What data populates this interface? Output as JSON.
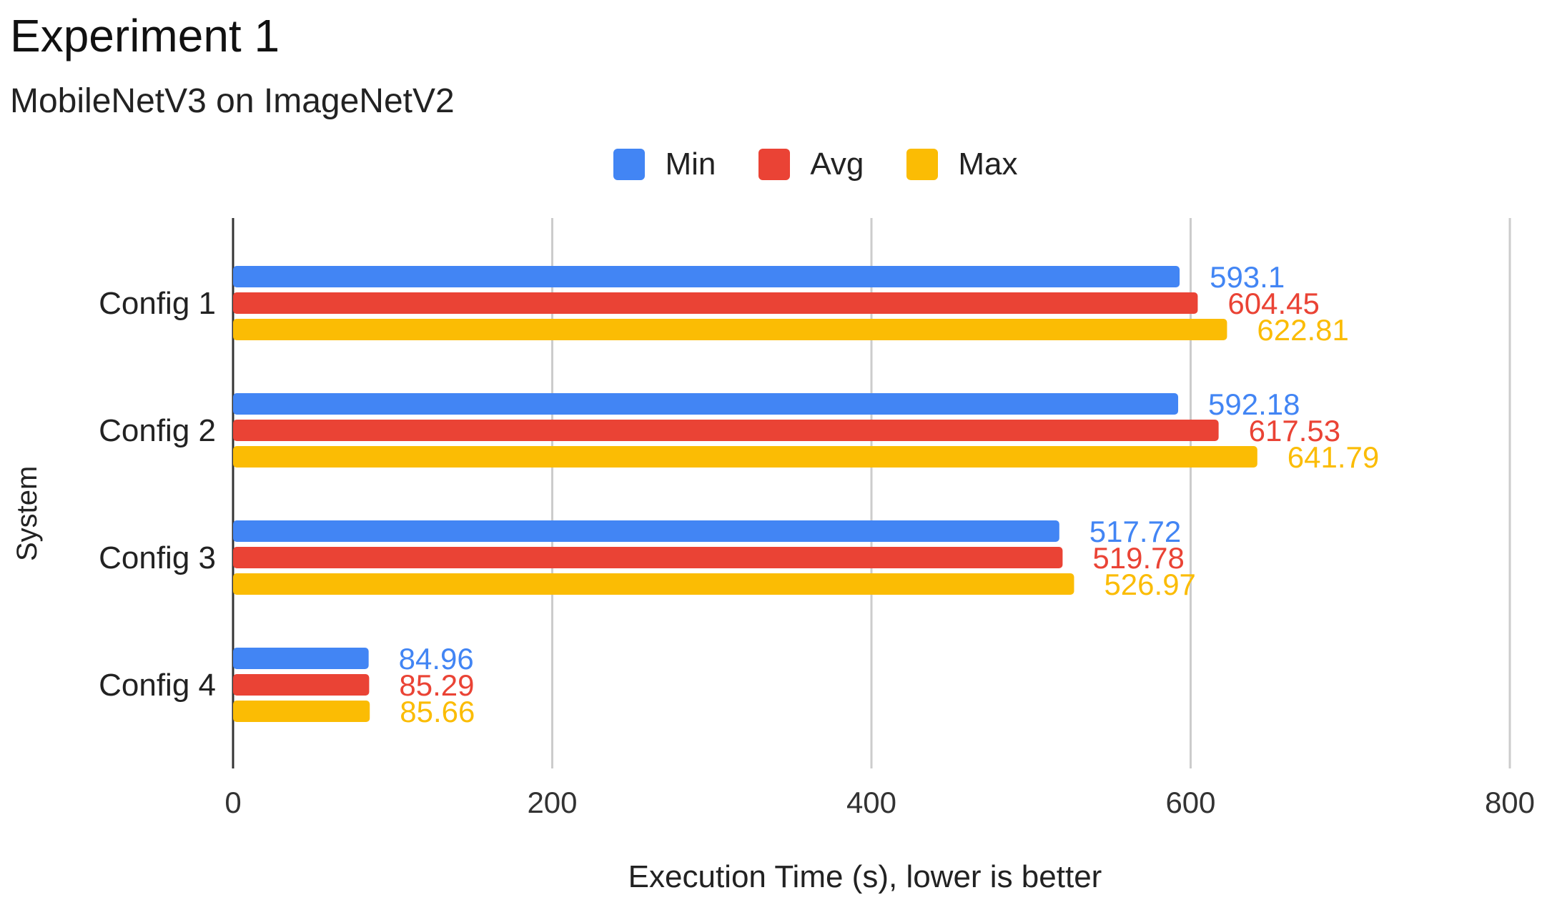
{
  "chart_data": {
    "type": "bar",
    "orientation": "horizontal",
    "title": "Experiment 1",
    "subtitle": "MobileNetV3 on ImageNetV2",
    "xlabel": "Execution Time (s), lower is better",
    "ylabel": "System",
    "xlim": [
      0,
      800
    ],
    "xticks": [
      0,
      200,
      400,
      600,
      800
    ],
    "grid": true,
    "legend_position": "top-center",
    "categories": [
      "Config 1",
      "Config 2",
      "Config 3",
      "Config 4"
    ],
    "series": [
      {
        "name": "Min",
        "color": "#4285F4",
        "values": [
          593.1,
          592.18,
          517.72,
          84.96
        ],
        "labels": [
          "593.1",
          "592.18",
          "517.72",
          "84.96"
        ]
      },
      {
        "name": "Avg",
        "color": "#EA4335",
        "values": [
          604.45,
          617.53,
          519.78,
          85.29
        ],
        "labels": [
          "604.45",
          "617.53",
          "519.78",
          "85.29"
        ]
      },
      {
        "name": "Max",
        "color": "#FBBC04",
        "values": [
          622.81,
          641.79,
          526.97,
          85.66
        ],
        "labels": [
          "622.81",
          "641.79",
          "526.97",
          "85.66"
        ]
      }
    ]
  }
}
